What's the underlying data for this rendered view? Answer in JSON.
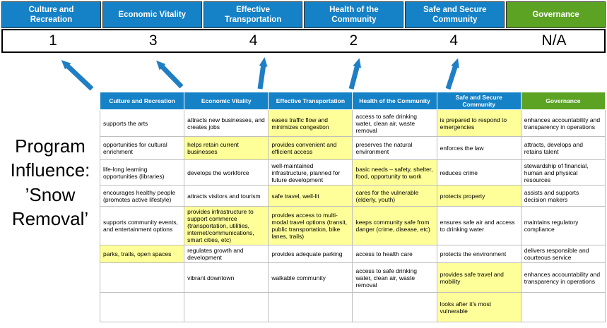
{
  "colors": {
    "header_blue": "#1581C6",
    "header_green": "#5CA324",
    "highlight_yellow": "#FFFF99",
    "arrow_blue": "#1F7EC4",
    "text_black": "#000000"
  },
  "title_lines": [
    "Program",
    "Influence:",
    "’Snow",
    "Removal’"
  ],
  "columns": [
    {
      "label": "Culture and Recreation",
      "score": "1",
      "type": "blue"
    },
    {
      "label": "Economic Vitality",
      "score": "3",
      "type": "blue"
    },
    {
      "label": "Effective Transportation",
      "score": "4",
      "type": "blue"
    },
    {
      "label": "Health of the Community",
      "score": "2",
      "type": "blue"
    },
    {
      "label": "Safe and Secure Community",
      "score": "4",
      "type": "blue"
    },
    {
      "label": "Governance",
      "score": "N/A",
      "type": "green"
    }
  ],
  "matrix_rows": [
    [
      {
        "text": "supports the arts",
        "highlight": false
      },
      {
        "text": "attracts new businesses, and creates jobs",
        "highlight": false
      },
      {
        "text": "eases traffic flow and minimizes congestion",
        "highlight": true
      },
      {
        "text": "access to safe drinking water, clean air, waste removal",
        "highlight": false
      },
      {
        "text": "is prepared to respond to emergencies",
        "highlight": true
      },
      {
        "text": "enhances accountability and transparency in operations",
        "highlight": false
      }
    ],
    [
      {
        "text": "opportunities for cultural enrichment",
        "highlight": false
      },
      {
        "text": "helps retain current businesses",
        "highlight": true
      },
      {
        "text": "provides convenient and efficient access",
        "highlight": true
      },
      {
        "text": "preserves the natural environment",
        "highlight": false
      },
      {
        "text": "enforces the law",
        "highlight": false
      },
      {
        "text": "attracts, develops and retains talent",
        "highlight": false
      }
    ],
    [
      {
        "text": "life-long learning opportunities (libraries)",
        "highlight": false
      },
      {
        "text": "develops the workforce",
        "highlight": false
      },
      {
        "text": "well-maintained infrastructure, planned for future development",
        "highlight": false
      },
      {
        "text": "basic needs – safety, shelter, food, opportunity to work",
        "highlight": true
      },
      {
        "text": "reduces crime",
        "highlight": false
      },
      {
        "text": "stewardship of financial, human and physical resources",
        "highlight": false
      }
    ],
    [
      {
        "text": "encourages healthy people (promotes active lifestyle)",
        "highlight": false
      },
      {
        "text": "attracts visitors and tourism",
        "highlight": false
      },
      {
        "text": "safe travel, well-lit",
        "highlight": true
      },
      {
        "text": "cares for the vulnerable (elderly, youth)",
        "highlight": true
      },
      {
        "text": "protects property",
        "highlight": true
      },
      {
        "text": "assists and supports decision makers",
        "highlight": false
      }
    ],
    [
      {
        "text": "supports community events, and entertainment options",
        "highlight": false
      },
      {
        "text": "provides infrastructure to support commerce (transportation, utilities, internet/communications, smart cities, etc)",
        "highlight": true
      },
      {
        "text": "provides access to multi-modal travel options (transit, public transportation, bike lanes, trails)",
        "highlight": true
      },
      {
        "text": "keeps community safe from danger (crime, disease, etc)",
        "highlight": true
      },
      {
        "text": "ensures safe air and access to drinking water",
        "highlight": false
      },
      {
        "text": "maintains regulatory compliance",
        "highlight": false
      }
    ],
    [
      {
        "text": "parks, trails, open spaces",
        "highlight": true
      },
      {
        "text": "regulates growth and development",
        "highlight": false
      },
      {
        "text": "provides adequate parking",
        "highlight": false
      },
      {
        "text": "access to health care",
        "highlight": false
      },
      {
        "text": "protects the environment",
        "highlight": false
      },
      {
        "text": "delivers responsible and courteous service",
        "highlight": false
      }
    ],
    [
      {
        "text": "",
        "highlight": false
      },
      {
        "text": "vibrant downtown",
        "highlight": false
      },
      {
        "text": "walkable community",
        "highlight": false
      },
      {
        "text": "access to safe drinking water, clean air, waste removal",
        "highlight": false
      },
      {
        "text": "provides safe travel and mobility",
        "highlight": true
      },
      {
        "text": "enhances accountability and transparency in operations",
        "highlight": false
      }
    ],
    [
      {
        "text": "",
        "highlight": false
      },
      {
        "text": "",
        "highlight": false
      },
      {
        "text": "",
        "highlight": false
      },
      {
        "text": "",
        "highlight": false
      },
      {
        "text": "looks after it's most vulnerable",
        "highlight": true
      },
      {
        "text": "",
        "highlight": false
      }
    ]
  ]
}
